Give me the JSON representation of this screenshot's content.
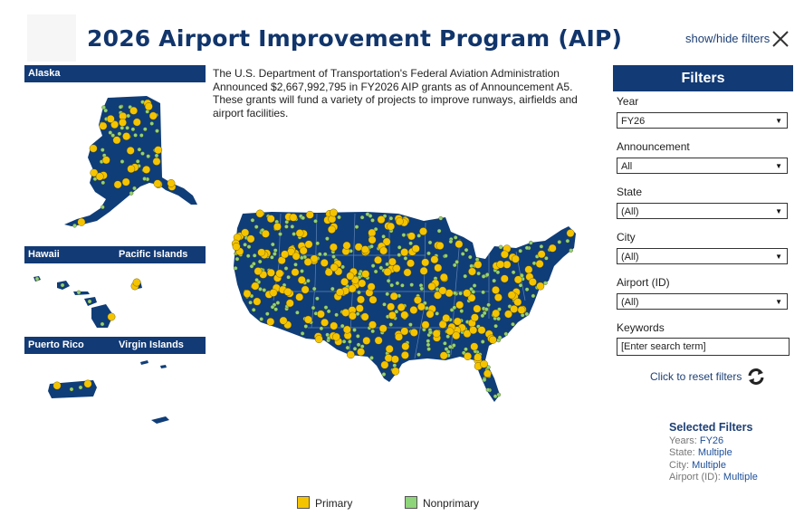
{
  "header": {
    "title": "2026 Airport Improvement Program (AIP)",
    "toggle_label": "show/hide filters",
    "close_icon": "close-x-icon"
  },
  "intro": "The U.S. Department of Transportation's Federal Aviation Administration Announced $2,667,992,795 in FY2026 AIP grants as of Announcement A5. These grants will fund a variety of projects to improve runways, airfields and airport facilities.",
  "regions": {
    "alaska": "Alaska",
    "hawaii": "Hawaii",
    "pacific": "Pacific Islands",
    "puerto_rico": "Puerto Rico",
    "virgin": "Virgin Islands"
  },
  "legend": {
    "primary": "Primary",
    "nonprimary": "Nonprimary"
  },
  "colors": {
    "land": "#0f3d78",
    "primary": "#f5c400",
    "nonprimary": "#8ed47a",
    "header_bar": "#123a75"
  },
  "filters": {
    "title": "Filters",
    "year_label": "Year",
    "year_value": "FY26",
    "announcement_label": "Announcement",
    "announcement_value": "All",
    "state_label": "State",
    "state_value": "(All)",
    "city_label": "City",
    "city_value": "(All)",
    "airport_label": "Airport (ID)",
    "airport_value": "(All)",
    "keywords_label": "Keywords",
    "keywords_value": "[Enter search term]",
    "reset_label": "Click to reset filters"
  },
  "selected": {
    "title": "Selected Filters",
    "years_label": "Years:",
    "years_value": "FY26",
    "state_label": "State:",
    "state_value": "Multiple",
    "city_label": "City:",
    "city_value": "Multiple",
    "airport_label": "Airport (ID):",
    "airport_value": "Multiple"
  }
}
